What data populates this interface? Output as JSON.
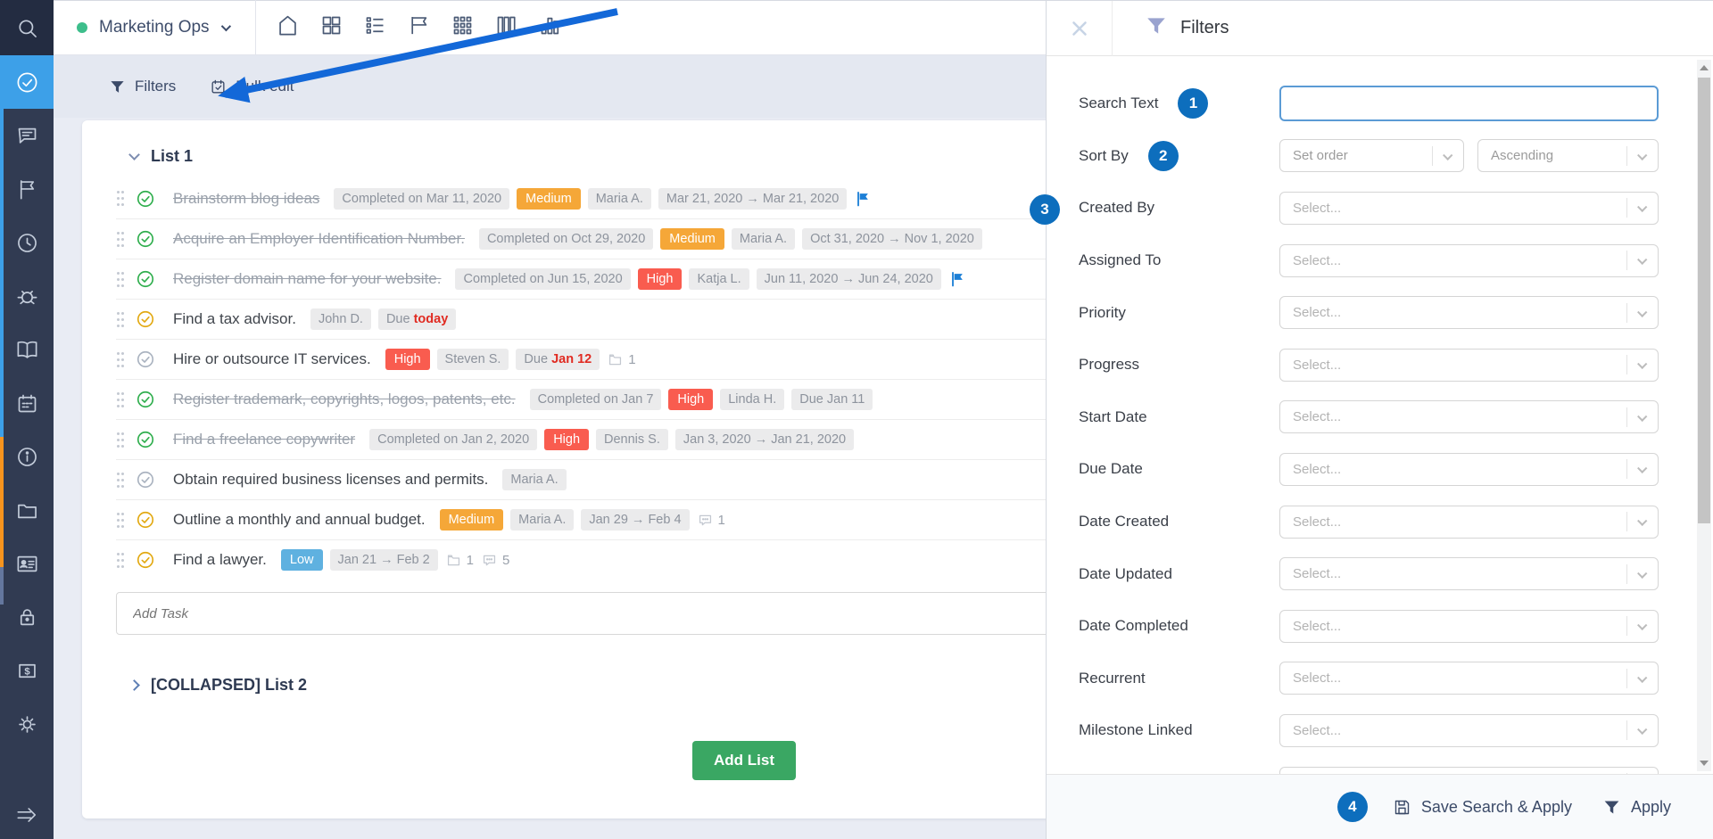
{
  "topbar": {
    "workspace": "Marketing Ops",
    "status_dot_color": "#3dbe8b",
    "view_icons": [
      "home-icon",
      "widget-board-icon",
      "task-list-icon",
      "kanban-board-icon",
      "matrix-icon",
      "columns-view-icon",
      "chart-view-icon"
    ]
  },
  "toolbar": {
    "filters_label": "Filters",
    "bulk_edit_label": "Bulk edit"
  },
  "sidebar": {
    "items": [
      {
        "icon": "search-icon",
        "tile": "search"
      },
      {
        "icon": "tasks-icon",
        "active": true
      },
      {
        "icon": "discussions-icon"
      },
      {
        "icon": "milestones-icon"
      },
      {
        "icon": "time-icon"
      },
      {
        "icon": "issues-icon"
      },
      {
        "icon": "wiki-icon"
      },
      {
        "icon": "calendar-icon"
      },
      {
        "icon": "info-icon"
      },
      {
        "icon": "files-icon"
      },
      {
        "icon": "contacts-icon"
      },
      {
        "icon": "passwords-icon"
      },
      {
        "icon": "invoices-icon"
      },
      {
        "icon": "settings-icon"
      }
    ],
    "bottom_icon": "expand-sidebar-icon"
  },
  "lists": {
    "list1_title": "List 1",
    "tasks": [
      {
        "title": "Brainstorm blog ideas",
        "struck": true,
        "check": "green",
        "meta": [
          {
            "t": "chip",
            "text": "Completed on Mar 11, 2020"
          },
          {
            "t": "prio",
            "text": "Medium",
            "color": "#f5a738"
          },
          {
            "t": "chip",
            "text": "Maria A."
          },
          {
            "t": "chip",
            "text": "Mar 21, 2020 → Mar 21, 2020"
          },
          {
            "t": "flag"
          }
        ]
      },
      {
        "title": "Acquire an Employer Identification Number.",
        "struck": true,
        "check": "green",
        "meta": [
          {
            "t": "chip",
            "text": "Completed on Oct 29, 2020"
          },
          {
            "t": "prio",
            "text": "Medium",
            "color": "#f5a738"
          },
          {
            "t": "chip",
            "text": "Maria A."
          },
          {
            "t": "chip",
            "text": "Oct 31, 2020 → Nov 1, 2020"
          }
        ]
      },
      {
        "title": "Register domain name for your website.",
        "struck": true,
        "check": "green",
        "meta": [
          {
            "t": "chip",
            "text": "Completed on Jun 15, 2020"
          },
          {
            "t": "prio",
            "text": "High",
            "color": "#f95c4f"
          },
          {
            "t": "chip",
            "text": "Katja L."
          },
          {
            "t": "chip",
            "text": "Jun 11, 2020 → Jun 24, 2020"
          },
          {
            "t": "flag"
          }
        ]
      },
      {
        "title": "Find a tax advisor.",
        "struck": false,
        "check": "yellow",
        "meta": [
          {
            "t": "chip",
            "text": "John D."
          },
          {
            "t": "due",
            "pre": "Due ",
            "hot": "today"
          }
        ]
      },
      {
        "title": "Hire or outsource IT services.",
        "struck": false,
        "check": "grey",
        "meta": [
          {
            "t": "prio",
            "text": "High",
            "color": "#f95c4f"
          },
          {
            "t": "chip",
            "text": "Steven S."
          },
          {
            "t": "due",
            "pre": "Due ",
            "hot": "Jan 12"
          },
          {
            "t": "files",
            "text": "1"
          }
        ]
      },
      {
        "title": "Register trademark, copyrights, logos, patents, etc.",
        "struck": true,
        "check": "green",
        "meta": [
          {
            "t": "chip",
            "text": "Completed on Jan 7"
          },
          {
            "t": "prio",
            "text": "High",
            "color": "#f95c4f"
          },
          {
            "t": "chip",
            "text": "Linda H."
          },
          {
            "t": "chip",
            "text": "Due Jan 11"
          }
        ]
      },
      {
        "title": "Find a freelance copywriter",
        "struck": true,
        "check": "green",
        "meta": [
          {
            "t": "chip",
            "text": "Completed on Jan 2, 2020"
          },
          {
            "t": "prio",
            "text": "High",
            "color": "#f95c4f"
          },
          {
            "t": "chip",
            "text": "Dennis S."
          },
          {
            "t": "chip",
            "text": "Jan 3, 2020 → Jan 21, 2020"
          }
        ]
      },
      {
        "title": "Obtain required business licenses and permits.",
        "struck": false,
        "check": "grey",
        "meta": [
          {
            "t": "chip",
            "text": "Maria A."
          }
        ]
      },
      {
        "title": "Outline a monthly and annual budget.",
        "struck": false,
        "check": "yellow",
        "meta": [
          {
            "t": "prio",
            "text": "Medium",
            "color": "#f5a738"
          },
          {
            "t": "chip",
            "text": "Maria A."
          },
          {
            "t": "chip",
            "text": "Jan 29 → Feb 4"
          },
          {
            "t": "comments",
            "text": "1"
          }
        ]
      },
      {
        "title": "Find a lawyer.",
        "struck": false,
        "check": "yellow",
        "meta": [
          {
            "t": "prio",
            "text": "Low",
            "color": "#5fb1e0"
          },
          {
            "t": "chip",
            "text": "Jan 21 → Feb 2"
          },
          {
            "t": "files",
            "text": "1"
          },
          {
            "t": "comments",
            "text": "5"
          }
        ]
      }
    ],
    "add_task_placeholder": "Add Task",
    "list2_title": "[COLLAPSED] List 2",
    "add_list_label": "Add List"
  },
  "panel": {
    "title": "Filters",
    "fields": [
      {
        "label": "Search Text",
        "badge": "1",
        "controls": [
          {
            "type": "input",
            "value": ""
          }
        ]
      },
      {
        "label": "Sort By",
        "badge": "2",
        "controls": [
          {
            "type": "select",
            "value": "Set order",
            "half": 1
          },
          {
            "type": "select",
            "value": "Ascending",
            "half": 2
          }
        ]
      },
      {
        "label": "Created By",
        "badge_edge": "3",
        "controls": [
          {
            "type": "select",
            "value": "Select..."
          }
        ]
      },
      {
        "label": "Assigned To",
        "controls": [
          {
            "type": "select",
            "value": "Select..."
          }
        ]
      },
      {
        "label": "Priority",
        "controls": [
          {
            "type": "select",
            "value": "Select..."
          }
        ]
      },
      {
        "label": "Progress",
        "controls": [
          {
            "type": "select",
            "value": "Select..."
          }
        ]
      },
      {
        "label": "Start Date",
        "controls": [
          {
            "type": "select",
            "value": "Select..."
          }
        ]
      },
      {
        "label": "Due Date",
        "controls": [
          {
            "type": "select",
            "value": "Select..."
          }
        ]
      },
      {
        "label": "Date Created",
        "controls": [
          {
            "type": "select",
            "value": "Select..."
          }
        ]
      },
      {
        "label": "Date Updated",
        "controls": [
          {
            "type": "select",
            "value": "Select..."
          }
        ]
      },
      {
        "label": "Date Completed",
        "controls": [
          {
            "type": "select",
            "value": "Select..."
          }
        ]
      },
      {
        "label": "Recurrent",
        "controls": [
          {
            "type": "select",
            "value": "Select..."
          }
        ]
      },
      {
        "label": "Milestone Linked",
        "controls": [
          {
            "type": "select",
            "value": "Select..."
          }
        ]
      },
      {
        "label": "",
        "controls": [
          {
            "type": "select",
            "value": ""
          }
        ]
      }
    ],
    "footer": {
      "badge": "4",
      "save_label": "Save Search & Apply",
      "apply_label": "Apply"
    }
  },
  "colors": {
    "sidebar_bg": "#313b52",
    "sidebar_active": "#3da0e8",
    "strip_orange": "#f7941e",
    "toolbar_bg": "#e4e8f1",
    "accent_badge": "#0d6ebd",
    "arrow_blue": "#1368d8",
    "priority_high": "#f95c4f",
    "priority_medium": "#f5a738",
    "priority_low": "#5fb1e0",
    "add_list_green": "#3aa763",
    "due_red": "#e02b22",
    "milestone_flag": "#1c7fd6"
  }
}
